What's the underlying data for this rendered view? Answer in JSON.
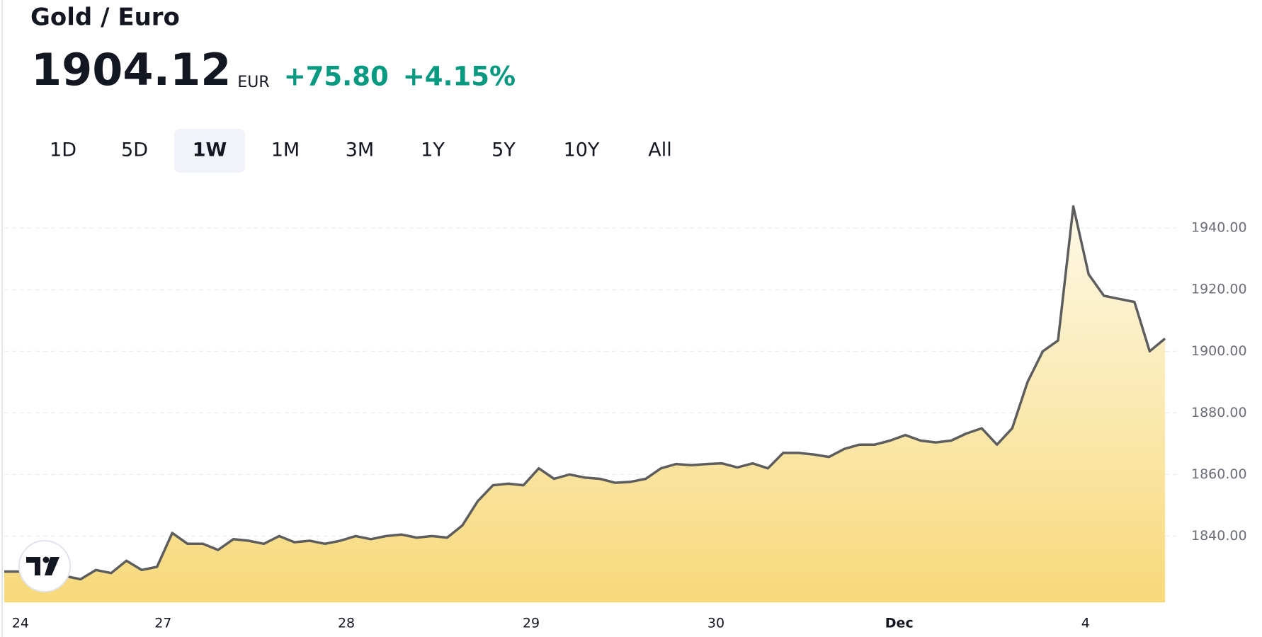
{
  "header": {
    "title": "Gold / Euro",
    "price": "1904.12",
    "currency": "EUR",
    "change": "+75.80",
    "change_pct": "+4.15%"
  },
  "tabs": [
    "1D",
    "5D",
    "1W",
    "1M",
    "3M",
    "1Y",
    "5Y",
    "10Y",
    "All"
  ],
  "selected_tab": 2,
  "chart_data": {
    "type": "area",
    "series": [
      {
        "color": "#5d5d5d",
        "values": [
          1828.5,
          1828.5,
          1827.7,
          1827,
          1827,
          1826,
          1829,
          1828,
          1832,
          1829,
          1830,
          1841,
          1837.5,
          1837.5,
          1835.5,
          1839,
          1838.5,
          1837.5,
          1840,
          1838,
          1838.5,
          1837.5,
          1838.5,
          1840,
          1839,
          1840,
          1840.5,
          1839.5,
          1840,
          1839.5,
          1843.5,
          1851.3,
          1856.5,
          1857,
          1856.5,
          1862,
          1858.6,
          1860,
          1859,
          1858.6,
          1857.3,
          1857.6,
          1858.6,
          1862,
          1863.4,
          1863,
          1863.4,
          1863.6,
          1862.3,
          1863.6,
          1862,
          1867,
          1867,
          1866.5,
          1865.7,
          1868.3,
          1869.7,
          1869.7,
          1871,
          1872.8,
          1871,
          1870.4,
          1871,
          1873.3,
          1875,
          1869.7,
          1875,
          1890,
          1900,
          1903.5,
          1947,
          1925,
          1918,
          1917,
          1916,
          1900,
          1904.12
        ]
      }
    ],
    "xlim": [
      0,
      76
    ],
    "xticks": [
      {
        "value": 0.5,
        "label": "24"
      },
      {
        "value": 10.4,
        "label": "27"
      },
      {
        "value": 22.4,
        "label": "28"
      },
      {
        "value": 34.5,
        "label": "29"
      },
      {
        "value": 46.6,
        "label": "30"
      },
      {
        "value": 58.6,
        "label": "Dec"
      },
      {
        "value": 70.8,
        "label": "4"
      }
    ],
    "ylim": [
      1818.5,
      1953.6
    ],
    "yticks": [
      {
        "value": 1840,
        "label": "1840.00"
      },
      {
        "value": 1860,
        "label": "1860.00"
      },
      {
        "value": 1880,
        "label": "1880.00"
      },
      {
        "value": 1900,
        "label": "1900.00"
      },
      {
        "value": 1920,
        "label": "1920.00"
      },
      {
        "value": 1940,
        "label": "1940.00"
      }
    ],
    "grid": true
  }
}
